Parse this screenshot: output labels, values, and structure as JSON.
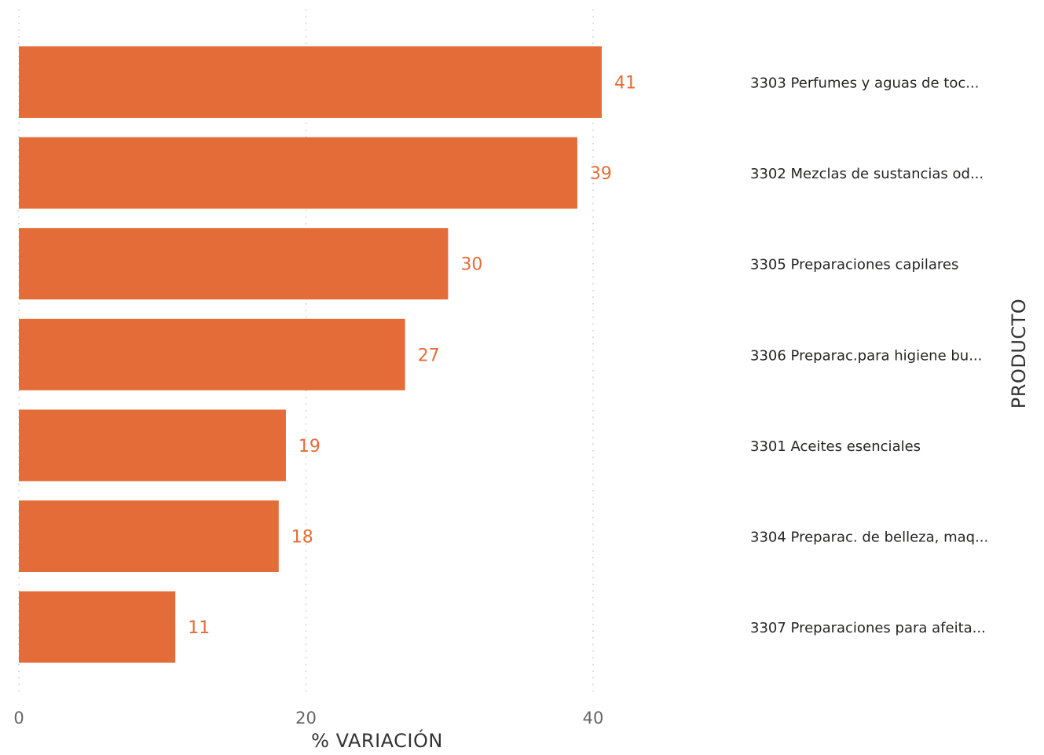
{
  "chart_data": {
    "type": "bar",
    "orientation": "horizontal",
    "categories": [
      "3303 Perfumes y aguas de toc...",
      "3302 Mezclas de sustancias od...",
      "3305 Preparaciones capilares",
      "3306 Preparac.para higiene bu...",
      "3301 Aceites esenciales",
      "3304 Preparac. de belleza, maq...",
      "3307 Preparaciones para afeita..."
    ],
    "values": [
      40.6,
      38.9,
      29.9,
      26.9,
      18.6,
      18.1,
      10.9
    ],
    "value_labels": [
      "41",
      "39",
      "30",
      "27",
      "19",
      "18",
      "11"
    ],
    "xlabel": "% VARIACIÓN",
    "ylabel": "PRODUCTO",
    "xlim": [
      0,
      40.6
    ],
    "xticks": [
      "0",
      "20",
      "40"
    ],
    "grid": true,
    "category_axis_side": "right",
    "bar_color": "#E46C38",
    "label_color": "#E46C38",
    "tick_color": "#666666",
    "category_label_color": "#252423"
  }
}
